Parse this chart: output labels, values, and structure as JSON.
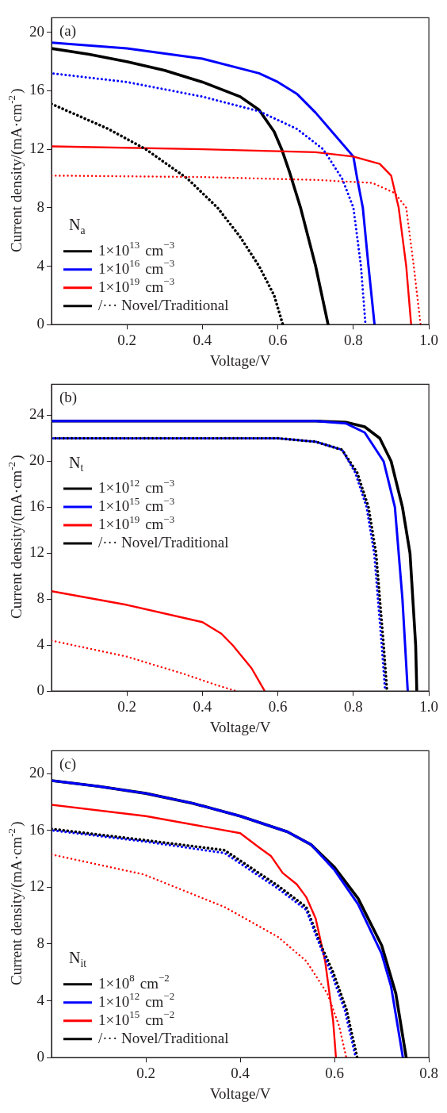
{
  "chart_data": [
    {
      "type": "line",
      "xlabel": "Voltage/V",
      "ylabel": "Current density/(mA·cm$^{-2}$)",
      "xlim": [
        0,
        1
      ],
      "xticks": [
        0.2,
        0.4,
        0.6,
        0.8,
        {
          "value": 1,
          "label": "1.0"
        }
      ],
      "ylim": [
        0,
        21
      ],
      "yticks": [
        0,
        4,
        8,
        12,
        16,
        20
      ],
      "legend": "bottom left",
      "annotations": [
        "(a)",
        "N$_{a}$",
        "/··· Novel/Traditional"
      ],
      "series": [
        {
          "name": "1×10$^{13}$ cm$^{−3}$",
          "color": "#000000",
          "x": [
            0,
            0.1,
            0.2,
            0.3,
            0.4,
            0.45,
            0.5,
            0.55,
            0.59,
            0.61,
            0.63,
            0.66,
            0.7,
            0.733
          ],
          "values": [
            18.9,
            18.5,
            18.0,
            17.4,
            16.6,
            16.1,
            15.6,
            14.7,
            13.2,
            12,
            10.5,
            8,
            4,
            0
          ]
        },
        {
          "name": "1×10$^{16}$ cm$^{−3}$",
          "color": "#0000ff",
          "x": [
            0,
            0.2,
            0.4,
            0.55,
            0.6,
            0.65,
            0.7,
            0.75,
            0.8,
            0.81,
            0.825,
            0.84,
            0.856
          ],
          "values": [
            19.3,
            18.9,
            18.2,
            17.2,
            16.6,
            15.8,
            14.5,
            13,
            11.5,
            10,
            8,
            4,
            0
          ]
        },
        {
          "name": "1×10$^{19}$ cm$^{−3}$",
          "color": "#ff0000",
          "x": [
            0,
            0.4,
            0.7,
            0.8,
            0.87,
            0.9,
            0.92,
            0.94,
            0.953
          ],
          "values": [
            12.2,
            12.0,
            11.8,
            11.5,
            11.0,
            10.2,
            8,
            4,
            0
          ]
        },
        {
          "color": "#000000",
          "line_style": "dotted",
          "x": [
            0,
            0.15,
            0.25,
            0.36,
            0.44,
            0.5,
            0.55,
            0.59,
            0.613
          ],
          "values": [
            15.1,
            13.4,
            12,
            10,
            8,
            6,
            4,
            2,
            0
          ]
        },
        {
          "color": "#0000ff",
          "line_style": "dotted",
          "x": [
            0,
            0.2,
            0.4,
            0.55,
            0.65,
            0.72,
            0.77,
            0.8,
            0.82,
            0.832
          ],
          "values": [
            17.2,
            16.6,
            15.6,
            14.6,
            13.4,
            12,
            10,
            8,
            4,
            0
          ]
        },
        {
          "color": "#ff0000",
          "line_style": "dotted",
          "x": [
            0,
            0.4,
            0.7,
            0.85,
            0.91,
            0.94,
            0.96,
            0.978
          ],
          "values": [
            10.2,
            10.1,
            9.9,
            9.7,
            9.0,
            8,
            4,
            0
          ]
        }
      ]
    },
    {
      "type": "line",
      "xlabel": "Voltage/V",
      "ylabel": "Current density/(mA·cm$^{-2}$)",
      "xlim": [
        0,
        1
      ],
      "xticks": [
        0.2,
        0.4,
        0.6,
        0.8,
        {
          "value": 1,
          "label": "1.0"
        }
      ],
      "ylim": [
        0,
        26.7
      ],
      "yticks": [
        0,
        4,
        8,
        12,
        16,
        20,
        24
      ],
      "legend": "top left",
      "annotations": [
        "(b)",
        "N$_{t}$",
        "/··· Novel/Traditional"
      ],
      "series": [
        {
          "name": "1×10$^{12}$ cm$^{−3}$",
          "color": "#000000",
          "x": [
            0,
            0.7,
            0.78,
            0.83,
            0.87,
            0.9,
            0.93,
            0.95,
            0.965,
            0.968
          ],
          "values": [
            23.5,
            23.5,
            23.4,
            23,
            22,
            20,
            16,
            12,
            4,
            0
          ]
        },
        {
          "name": "1×10$^{15}$ cm$^{−3}$",
          "color": "#0000ff",
          "x": [
            0,
            0.7,
            0.78,
            0.83,
            0.88,
            0.91,
            0.93,
            0.944
          ],
          "values": [
            23.5,
            23.5,
            23.3,
            22.5,
            20,
            16,
            8,
            0
          ]
        },
        {
          "name": "1×10$^{19}$ cm$^{−3}$",
          "color": "#ff0000",
          "x": [
            0,
            0.2,
            0.4,
            0.45,
            0.48,
            0.53,
            0.565
          ],
          "values": [
            8.7,
            7.5,
            6.0,
            5.0,
            4,
            2,
            0
          ]
        },
        {
          "color": "#000000",
          "line_style": "dotted",
          "x": [
            0,
            0.6,
            0.7,
            0.77,
            0.81,
            0.84,
            0.86,
            0.87,
            0.88,
            0.889
          ],
          "values": [
            22,
            22,
            21.7,
            21,
            19,
            16,
            12,
            8,
            4,
            0
          ]
        },
        {
          "color": "#0000ff",
          "line_style": "dotted",
          "x": [
            0,
            0.6,
            0.7,
            0.77,
            0.805,
            0.835,
            0.855,
            0.865,
            0.875,
            0.884
          ],
          "values": [
            22,
            22,
            21.7,
            21,
            19,
            16,
            12,
            8,
            4,
            0
          ]
        },
        {
          "color": "#ff0000",
          "line_style": "dotted",
          "x": [
            0,
            0.2,
            0.35,
            0.44,
            0.49
          ],
          "values": [
            4.4,
            3,
            1.5,
            0.5,
            0
          ]
        }
      ]
    },
    {
      "type": "line",
      "xlabel": "Voltage/V",
      "ylabel": "Current density/(mA·cm$^{-2}$)",
      "xlim": [
        0,
        0.8
      ],
      "xticks": [
        0.2,
        0.4,
        0.6,
        0.8
      ],
      "ylim": [
        0,
        21.6
      ],
      "yticks": [
        0,
        4,
        8,
        12,
        16,
        20
      ],
      "legend": "bottom left",
      "annotations": [
        "(c)",
        "N$_{it}$",
        "/··· Novel/Traditional"
      ],
      "series": [
        {
          "name": "1×10$^{8}$ cm$^{−2}$",
          "color": "#000000",
          "x": [
            0,
            0.1,
            0.2,
            0.3,
            0.4,
            0.5,
            0.55,
            0.6,
            0.65,
            0.7,
            0.73,
            0.752
          ],
          "values": [
            19.5,
            19.1,
            18.6,
            17.9,
            17.0,
            15.9,
            15.0,
            13.4,
            11.2,
            7.9,
            4.5,
            0
          ]
        },
        {
          "name": "1×10$^{12}$ cm$^{−2}$",
          "color": "#0000ff",
          "x": [
            0,
            0.1,
            0.2,
            0.3,
            0.4,
            0.5,
            0.55,
            0.6,
            0.65,
            0.7,
            0.72,
            0.745
          ],
          "values": [
            19.5,
            19.1,
            18.6,
            17.9,
            17.0,
            15.9,
            15.0,
            13.2,
            10.8,
            7.3,
            5,
            0
          ]
        },
        {
          "name": "1×10$^{15}$ cm$^{−2}$",
          "color": "#ff0000",
          "x": [
            0,
            0.2,
            0.4,
            0.44,
            0.465,
            0.49,
            0.52,
            0.54,
            0.56,
            0.58,
            0.597,
            0.603
          ],
          "values": [
            17.8,
            17.0,
            15.8,
            14.8,
            14.2,
            13.0,
            12.2,
            11.3,
            9.8,
            6.8,
            2.6,
            0
          ]
        },
        {
          "color": "#000000",
          "line_style": "dotted",
          "x": [
            0,
            0.2,
            0.367,
            0.48,
            0.54,
            0.57,
            0.597,
            0.625,
            0.648
          ],
          "values": [
            16.1,
            15.3,
            14.6,
            12.1,
            10.6,
            8.0,
            6.0,
            3.4,
            0
          ]
        },
        {
          "color": "#0000ff",
          "line_style": "dotted",
          "x": [
            0,
            0.2,
            0.367,
            0.48,
            0.54,
            0.57,
            0.595,
            0.622,
            0.645
          ],
          "values": [
            16.0,
            15.2,
            14.4,
            11.9,
            10.4,
            7.8,
            5.8,
            3.3,
            0
          ]
        },
        {
          "color": "#ff0000",
          "line_style": "dotted",
          "x": [
            0,
            0.195,
            0.367,
            0.48,
            0.54,
            0.585,
            0.61,
            0.625
          ],
          "values": [
            14.3,
            12.9,
            10.6,
            8.5,
            6.8,
            4.5,
            2.2,
            0
          ]
        }
      ]
    }
  ]
}
